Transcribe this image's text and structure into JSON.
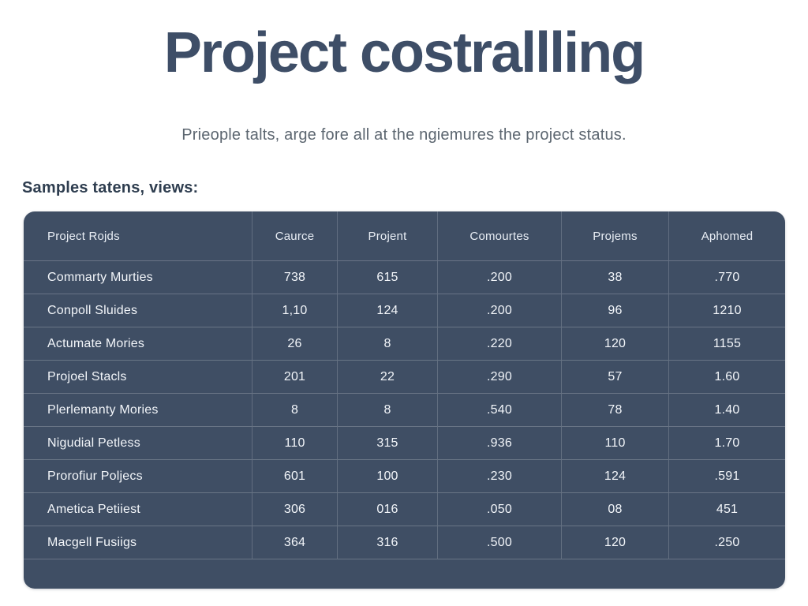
{
  "page": {
    "title": "Project costrallling",
    "subtitle": "Prieople talts, arge fore all at the ngiemures the project status.",
    "section_label": "Samples tatens, views:"
  },
  "colors": {
    "page_background": "#ffffff",
    "title_text": "#3e4e67",
    "subtitle_text": "#5c6670",
    "section_label_text": "#2e3d4f",
    "table_background": "#3f4e64",
    "table_text": "#f3f6fa",
    "table_grid_line": "rgba(255,255,255,0.22)"
  },
  "table": {
    "columns": [
      "Project Rojds",
      "Caurce",
      "Projent",
      "Comourtes",
      "Projems",
      "Aphomed"
    ],
    "rows": [
      [
        "Commarty Murties",
        "738",
        "615",
        ".200",
        "38",
        ".770"
      ],
      [
        "Conpoll Sluides",
        "1,10",
        "124",
        ".200",
        "96",
        "1210"
      ],
      [
        "Actumate Mories",
        "26",
        "8",
        ".220",
        "120",
        "1155"
      ],
      [
        "Projoel Stacls",
        "201",
        "22",
        ".290",
        "57",
        "1.60"
      ],
      [
        "Plerlemanty Mories",
        "8",
        "8",
        ".540",
        "78",
        "1.40"
      ],
      [
        "Nigudial Petless",
        "110",
        "315",
        ".936",
        "110",
        "1.70"
      ],
      [
        "Prorofiur Poljecs",
        "601",
        "100",
        ".230",
        "124",
        ".591"
      ],
      [
        "Ametica Petiiest",
        "306",
        "016",
        ".050",
        "08",
        "451"
      ],
      [
        "Macgell Fusiigs",
        "364",
        "316",
        ".500",
        "120",
        ".250"
      ]
    ]
  }
}
